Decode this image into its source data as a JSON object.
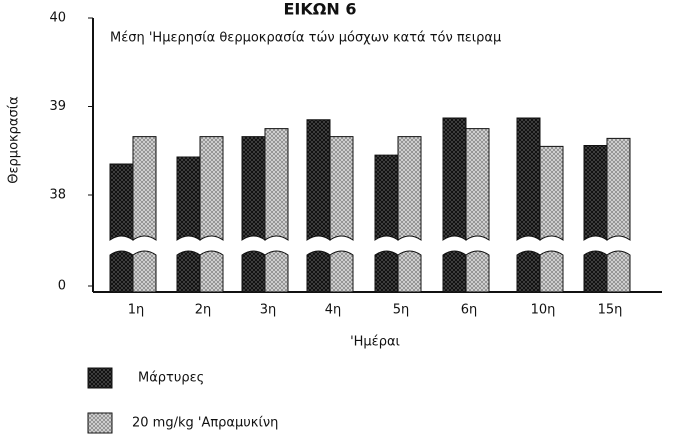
{
  "chart_data": {
    "type": "bar",
    "title": "ΕΙΚΩΝ 6",
    "subtitle": "Μέση 'Ημερησία θερμοκρασία τών μόσχων κατά τόν πειραμ",
    "y_label": "Θερμοκρασία",
    "x_label": "'Ημέραι",
    "categories": [
      "1η",
      "2η",
      "3η",
      "4η",
      "5η",
      "6η",
      "10η",
      "15η"
    ],
    "series": [
      {
        "name": "Μάρτυρες",
        "color": "#222222",
        "values": [
          38.35,
          38.43,
          38.66,
          38.85,
          38.45,
          38.87,
          38.87,
          38.56
        ]
      },
      {
        "name": "20 mg/kg 'Απραμυκίνη",
        "color": "#bbbbbb",
        "values": [
          38.66,
          38.66,
          38.75,
          38.66,
          38.66,
          38.75,
          38.55,
          38.64
        ]
      }
    ],
    "yticks": [
      0,
      38,
      39,
      40
    ],
    "ylim": [
      0,
      40
    ],
    "axis_break": true
  }
}
